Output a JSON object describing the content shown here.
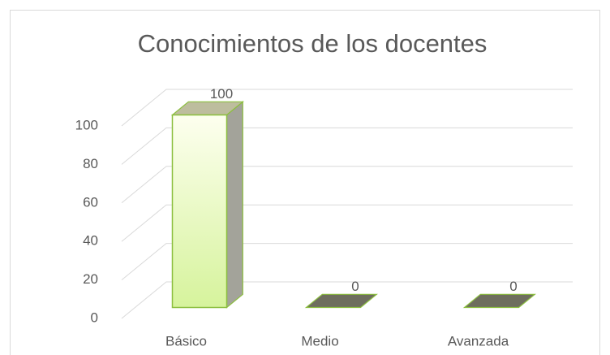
{
  "chart_data": {
    "type": "bar3d",
    "title": "Conocimientos de los docentes",
    "categories": [
      "Básico",
      "Medio",
      "Avanzada"
    ],
    "values": [
      100,
      0,
      0
    ],
    "ylim": [
      0,
      100
    ],
    "yticks": [
      0,
      20,
      40,
      60,
      80,
      100
    ],
    "grid": true,
    "color": "#e4f8b4"
  }
}
